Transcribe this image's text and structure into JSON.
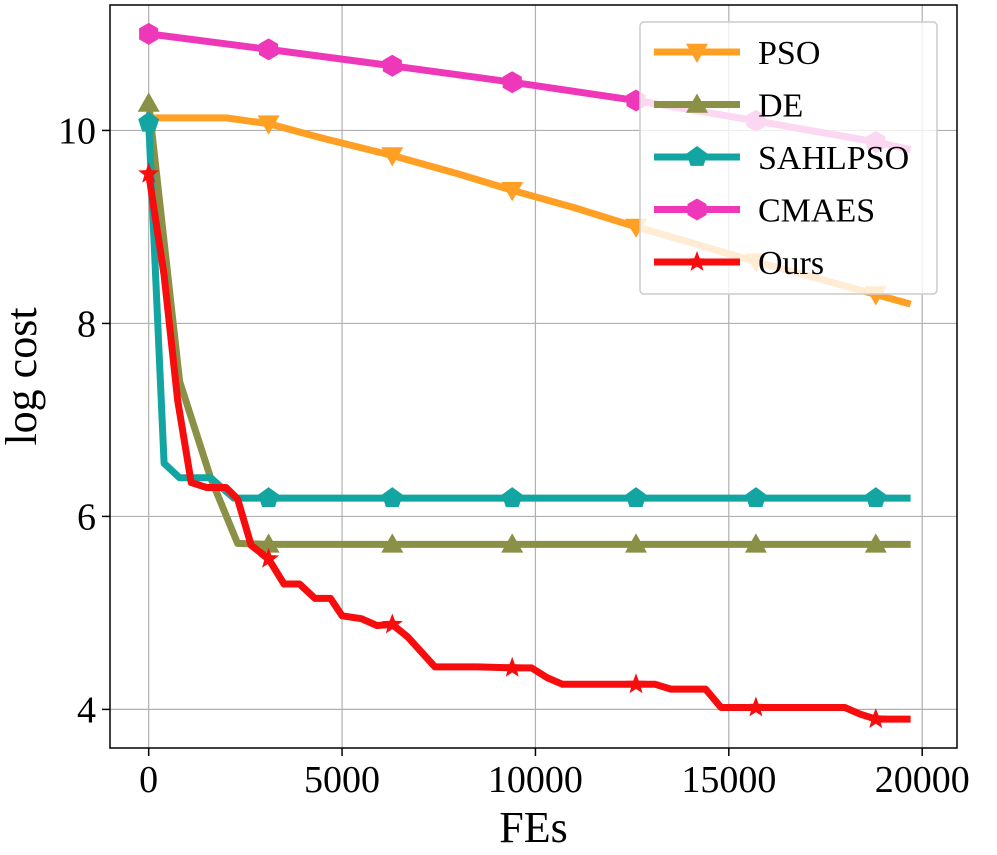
{
  "chart_data": {
    "type": "line",
    "title": "",
    "xlabel": "FEs",
    "ylabel": "log cost",
    "xlim": [
      -1000,
      20900
    ],
    "ylim": [
      3.6,
      11.3
    ],
    "xticks": [
      0,
      5000,
      10000,
      15000,
      20000
    ],
    "xtick_labels": [
      "0",
      "5000",
      "10000",
      "15000",
      "20000"
    ],
    "yticks": [
      4,
      6,
      8,
      10
    ],
    "ytick_labels": [
      "4",
      "6",
      "8",
      "10"
    ],
    "grid": true,
    "legend_position": "top-right",
    "series": [
      {
        "name": "PSO",
        "color": "#ffa024",
        "marker": "triangle-down",
        "x": [
          0,
          1000,
          2000,
          3100,
          4500,
          6300,
          8000,
          9400,
          11000,
          12600,
          14000,
          15700,
          17000,
          18800,
          19700
        ],
        "y": [
          10.13,
          10.13,
          10.13,
          10.07,
          9.92,
          9.74,
          9.55,
          9.38,
          9.2,
          9.0,
          8.84,
          8.64,
          8.5,
          8.3,
          8.2
        ],
        "marker_x": [
          3100,
          6300,
          9400,
          12600,
          15700,
          18800
        ],
        "marker_y": [
          10.07,
          9.74,
          9.38,
          9.0,
          8.64,
          8.3
        ]
      },
      {
        "name": "DE",
        "color": "#8a9045",
        "marker": "triangle-up",
        "x": [
          0,
          800,
          1600,
          2300,
          3100,
          6300,
          9400,
          12600,
          15700,
          18800,
          19700
        ],
        "y": [
          10.28,
          7.4,
          6.4,
          5.72,
          5.71,
          5.71,
          5.71,
          5.71,
          5.71,
          5.71,
          5.71
        ],
        "marker_x": [
          0,
          3100,
          6300,
          9400,
          12600,
          15700,
          18800
        ],
        "marker_y": [
          10.28,
          5.71,
          5.71,
          5.71,
          5.71,
          5.71,
          5.71
        ]
      },
      {
        "name": "SAHLPSO",
        "color": "#12a5a2",
        "marker": "pentagon",
        "x": [
          0,
          400,
          800,
          1600,
          2200,
          3100,
          6300,
          9400,
          12600,
          15700,
          18800,
          19700
        ],
        "y": [
          10.08,
          6.55,
          6.4,
          6.4,
          6.19,
          6.19,
          6.19,
          6.19,
          6.19,
          6.19,
          6.19,
          6.19
        ],
        "marker_x": [
          0,
          3100,
          6300,
          9400,
          12600,
          15700,
          18800
        ],
        "marker_y": [
          10.08,
          6.19,
          6.19,
          6.19,
          6.19,
          6.19,
          6.19
        ]
      },
      {
        "name": "CMAES",
        "color": "#ef38b9",
        "marker": "hexagon",
        "x": [
          0,
          3100,
          6300,
          9400,
          12600,
          15700,
          18800,
          19700
        ],
        "y": [
          11.0,
          10.84,
          10.67,
          10.5,
          10.31,
          10.1,
          9.88,
          9.8
        ],
        "marker_x": [
          0,
          3100,
          6300,
          9400,
          12600,
          15700,
          18800
        ],
        "marker_y": [
          11.0,
          10.84,
          10.67,
          10.5,
          10.31,
          10.1,
          9.88
        ]
      },
      {
        "name": "Ours",
        "color": "#f70d0d",
        "marker": "star",
        "x": [
          0,
          400,
          750,
          1100,
          1500,
          2000,
          2300,
          2650,
          3100,
          3500,
          3900,
          4300,
          4700,
          5000,
          5500,
          5900,
          6300,
          6700,
          7400,
          7900,
          8500,
          9400,
          9900,
          10300,
          10700,
          11200,
          11700,
          12200,
          12600,
          13100,
          13500,
          13900,
          14400,
          14800,
          15200,
          15700,
          16200,
          16800,
          17500,
          18000,
          18400,
          18800,
          19200,
          19700
        ],
        "y": [
          9.55,
          8.5,
          7.2,
          6.35,
          6.3,
          6.3,
          6.18,
          5.7,
          5.56,
          5.3,
          5.3,
          5.15,
          5.15,
          4.97,
          4.94,
          4.87,
          4.88,
          4.75,
          4.44,
          4.44,
          4.44,
          4.43,
          4.43,
          4.33,
          4.26,
          4.26,
          4.26,
          4.26,
          4.26,
          4.26,
          4.21,
          4.21,
          4.21,
          4.02,
          4.02,
          4.02,
          4.02,
          4.02,
          4.02,
          4.02,
          3.95,
          3.9,
          3.9,
          3.9
        ],
        "marker_x": [
          0,
          3100,
          6300,
          9400,
          12600,
          15700,
          18800
        ],
        "marker_y": [
          9.55,
          5.56,
          4.88,
          4.43,
          4.26,
          4.02,
          3.9
        ]
      }
    ]
  }
}
